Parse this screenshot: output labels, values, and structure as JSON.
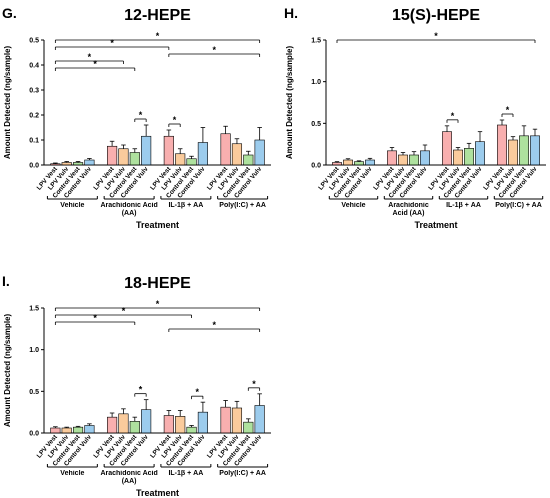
{
  "chart_data": [
    {
      "type": "bar",
      "panel": "G.",
      "title": "12-HEPE",
      "y_label": "Amount Detected (ng/sample)",
      "x_label": "Treatment",
      "groups": [
        "Vehicle",
        "Arachidonic Acid (AA)",
        "IL-1β + AA",
        "Poly(I:C) + AA"
      ],
      "series": [
        {
          "name": "LPV Vest",
          "color": "#f26d6d",
          "values": [
            0.005,
            0.075,
            0.115,
            0.125
          ],
          "errors": [
            0.003,
            0.02,
            0.025,
            0.03
          ]
        },
        {
          "name": "LPV Vulv",
          "color": "#f5a04a",
          "values": [
            0.01,
            0.065,
            0.045,
            0.085
          ],
          "errors": [
            0.004,
            0.015,
            0.02,
            0.02
          ]
        },
        {
          "name": "Control Vest",
          "color": "#6cc84f",
          "values": [
            0.01,
            0.05,
            0.025,
            0.04
          ],
          "errors": [
            0.004,
            0.015,
            0.01,
            0.015
          ]
        },
        {
          "name": "Control Vulv",
          "color": "#4aa3df",
          "values": [
            0.02,
            0.115,
            0.09,
            0.1
          ],
          "errors": [
            0.006,
            0.045,
            0.06,
            0.05
          ]
        }
      ],
      "ylim": [
        0,
        0.5
      ],
      "yticks": [
        {
          "value": 0,
          "label": "0.0"
        },
        0.1,
        0.2,
        0.3,
        0.4,
        0.5
      ],
      "significance": [
        {
          "text": "*",
          "from": [
            "Vehicle",
            "LPV Vest"
          ],
          "to": [
            "Poly(I:C) + AA",
            "Control Vulv"
          ]
        },
        {
          "text": "*",
          "from": [
            "Vehicle",
            "LPV Vest"
          ],
          "to": [
            "IL-1β + AA",
            "LPV Vest"
          ]
        },
        {
          "text": "*",
          "from": [
            "IL-1β + AA",
            "LPV Vest"
          ],
          "to": [
            "Poly(I:C) + AA",
            "Control Vulv"
          ]
        },
        {
          "text": "*",
          "from": [
            "Vehicle",
            "LPV Vest"
          ],
          "to": [
            "Arachidonic Acid (AA)",
            "LPV Vulv"
          ]
        },
        {
          "text": "*",
          "from": [
            "Vehicle",
            "LPV Vest"
          ],
          "to": [
            "Arachidonic Acid (AA)",
            "Control Vest"
          ]
        },
        {
          "text": "*",
          "from": [
            "Arachidonic Acid (AA)",
            "Control Vest"
          ],
          "to": [
            "Arachidonic Acid (AA)",
            "Control Vulv"
          ]
        },
        {
          "text": "*",
          "from": [
            "IL-1β + AA",
            "LPV Vest"
          ],
          "to": [
            "IL-1β + AA",
            "LPV Vulv"
          ]
        }
      ]
    },
    {
      "type": "bar",
      "panel": "H.",
      "title": "15(S)-HEPE",
      "y_label": "Amount Detected (ng/sample)",
      "x_label": "Treatment",
      "groups": [
        "Vehicle",
        "Arachidonic Acid (AA)",
        "IL-1β + AA",
        "Poly(I:C) + AA"
      ],
      "series": [
        {
          "name": "LPV Vest",
          "color": "#f26d6d",
          "values": [
            0.03,
            0.17,
            0.4,
            0.48
          ],
          "errors": [
            0.01,
            0.04,
            0.07,
            0.06
          ]
        },
        {
          "name": "LPV Vulv",
          "color": "#f5a04a",
          "values": [
            0.06,
            0.12,
            0.18,
            0.3
          ],
          "errors": [
            0.015,
            0.03,
            0.03,
            0.04
          ]
        },
        {
          "name": "Control Vest",
          "color": "#6cc84f",
          "values": [
            0.04,
            0.12,
            0.2,
            0.35
          ],
          "errors": [
            0.01,
            0.04,
            0.06,
            0.12
          ]
        },
        {
          "name": "Control Vulv",
          "color": "#4aa3df",
          "values": [
            0.06,
            0.17,
            0.28,
            0.35
          ],
          "errors": [
            0.02,
            0.07,
            0.12,
            0.08
          ]
        }
      ],
      "ylim": [
        0,
        1.5
      ],
      "yticks": [
        {
          "value": 0,
          "label": "0.0"
        },
        0.5,
        {
          "value": 1,
          "label": "1.0"
        },
        1.5
      ],
      "significance": [
        {
          "text": "*",
          "from": [
            "Vehicle",
            "LPV Vest"
          ],
          "to": [
            "Poly(I:C) + AA",
            "Control Vulv"
          ]
        },
        {
          "text": "*",
          "from": [
            "IL-1β + AA",
            "LPV Vest"
          ],
          "to": [
            "IL-1β + AA",
            "LPV Vulv"
          ]
        },
        {
          "text": "*",
          "from": [
            "Poly(I:C) + AA",
            "LPV Vest"
          ],
          "to": [
            "Poly(I:C) + AA",
            "LPV Vulv"
          ]
        }
      ]
    },
    {
      "type": "bar",
      "panel": "I.",
      "title": "18-HEPE",
      "y_label": "Amount Detected (ng/sample)",
      "x_label": "Treatment",
      "groups": [
        "Vehicle",
        "Arachidonic Acid (AA)",
        "IL-1β + AA",
        "Poly(I:C) + AA"
      ],
      "series": [
        {
          "name": "LPV Vest",
          "color": "#f26d6d",
          "values": [
            0.06,
            0.19,
            0.21,
            0.31
          ],
          "errors": [
            0.015,
            0.05,
            0.06,
            0.08
          ]
        },
        {
          "name": "LPV Vulv",
          "color": "#f5a04a",
          "values": [
            0.06,
            0.23,
            0.2,
            0.3
          ],
          "errors": [
            0.01,
            0.06,
            0.07,
            0.08
          ]
        },
        {
          "name": "Control Vest",
          "color": "#6cc84f",
          "values": [
            0.07,
            0.14,
            0.07,
            0.13
          ],
          "errors": [
            0.01,
            0.05,
            0.02,
            0.04
          ]
        },
        {
          "name": "Control Vulv",
          "color": "#4aa3df",
          "values": [
            0.09,
            0.28,
            0.25,
            0.33
          ],
          "errors": [
            0.02,
            0.12,
            0.12,
            0.14
          ]
        }
      ],
      "ylim": [
        0,
        1.5
      ],
      "yticks": [
        {
          "value": 0,
          "label": "0.0"
        },
        0.5,
        {
          "value": 1,
          "label": "1.0"
        },
        1.5
      ],
      "significance": [
        {
          "text": "*",
          "from": [
            "Vehicle",
            "LPV Vest"
          ],
          "to": [
            "Poly(I:C) + AA",
            "Control Vulv"
          ]
        },
        {
          "text": "*",
          "from": [
            "Vehicle",
            "LPV Vest"
          ],
          "to": [
            "IL-1β + AA",
            "Control Vest"
          ]
        },
        {
          "text": "*",
          "from": [
            "Vehicle",
            "LPV Vest"
          ],
          "to": [
            "Arachidonic Acid (AA)",
            "Control Vest"
          ]
        },
        {
          "text": "*",
          "from": [
            "IL-1β + AA",
            "LPV Vest"
          ],
          "to": [
            "Poly(I:C) + AA",
            "Control Vulv"
          ]
        },
        {
          "text": "*",
          "from": [
            "Arachidonic Acid (AA)",
            "Control Vest"
          ],
          "to": [
            "Arachidonic Acid (AA)",
            "Control Vulv"
          ]
        },
        {
          "text": "*",
          "from": [
            "IL-1β + AA",
            "Control Vest"
          ],
          "to": [
            "IL-1β + AA",
            "Control Vulv"
          ]
        },
        {
          "text": "*",
          "from": [
            "Poly(I:C) + AA",
            "Control Vest"
          ],
          "to": [
            "Poly(I:C) + AA",
            "Control Vulv"
          ]
        }
      ]
    }
  ]
}
